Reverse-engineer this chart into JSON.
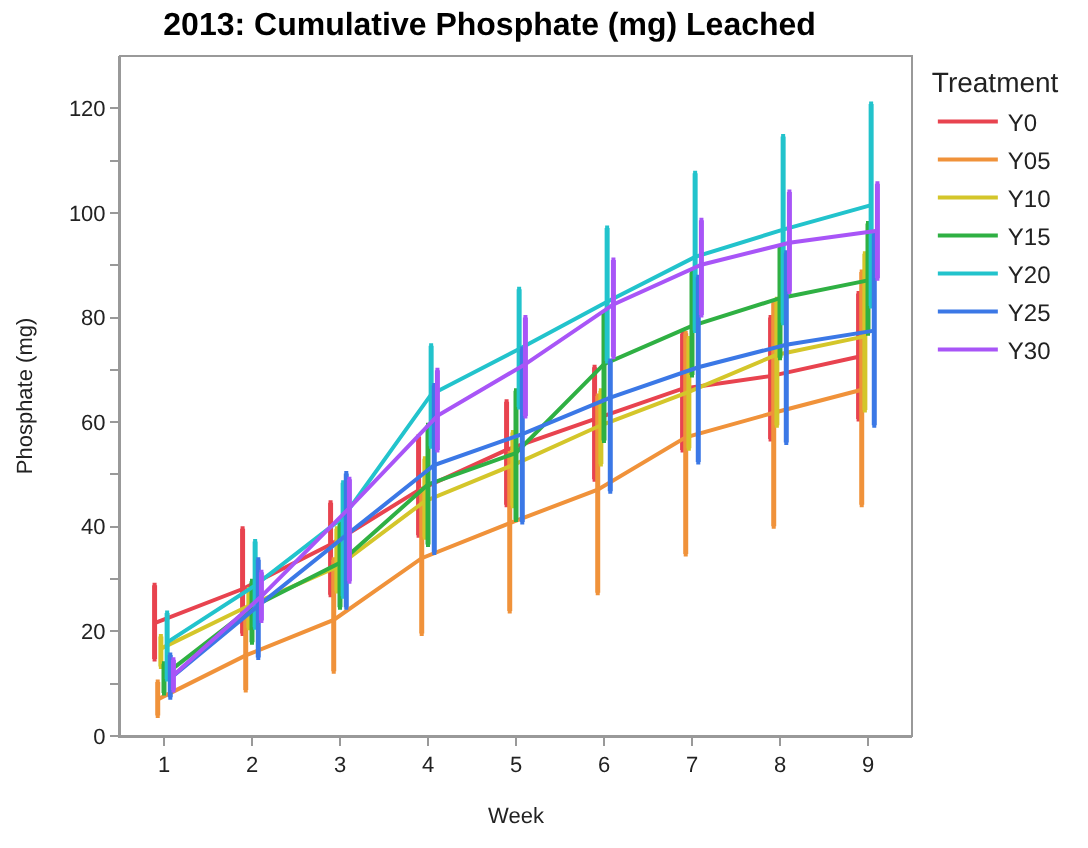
{
  "chart_data": {
    "type": "line",
    "title": "2013: Cumulative Phosphate (mg) Leached",
    "xlabel": "Week",
    "ylabel": "Phosphate (mg)",
    "legend_title": "Treatment",
    "legend": "right",
    "marker": "none",
    "line_style": "solid",
    "categories": [
      "1",
      "2",
      "3",
      "4",
      "5",
      "6",
      "7",
      "8",
      "9"
    ],
    "ylim": [
      0,
      130
    ],
    "yticks": [
      0,
      {
        "value": 10,
        "label": null
      },
      20,
      {
        "value": 30,
        "label": null
      },
      40,
      {
        "value": 50,
        "label": null
      },
      60,
      {
        "value": 70,
        "label": null
      },
      80,
      {
        "value": 90,
        "label": null
      },
      100,
      {
        "value": 110,
        "label": null
      },
      120
    ],
    "series": [
      {
        "name": "Y0",
        "color": "#e8434f",
        "values": [
          21.6,
          28.1,
          36.6,
          47,
          54.7,
          60.6,
          66.4,
          68.8,
          72.5
        ],
        "errors": [
          [
            14.7,
            28.8
          ],
          [
            19.6,
            39.6
          ],
          [
            27,
            44.6
          ],
          [
            38.4,
            57.2
          ],
          [
            44.2,
            63.9
          ],
          [
            49.1,
            70.5
          ],
          [
            54.7,
            76.9
          ],
          [
            56.8,
            80
          ],
          [
            60.6,
            84.6
          ]
        ]
      },
      {
        "name": "Y05",
        "color": "#f0923a",
        "values": [
          7,
          15.4,
          22.2,
          34,
          40.7,
          47.1,
          57.1,
          61.8,
          66.2
        ],
        "errors": [
          [
            3.9,
            10.3
          ],
          [
            8.8,
            23
          ],
          [
            12.4,
            33.7
          ],
          [
            19.6,
            47
          ],
          [
            23.9,
            54
          ],
          [
            27.4,
            65
          ],
          [
            34.8,
            77
          ],
          [
            40.1,
            82.8
          ],
          [
            44.2,
            88.7
          ]
        ]
      },
      {
        "name": "Y10",
        "color": "#d4c62a",
        "values": [
          16.7,
          24.9,
          32.3,
          44.9,
          51.8,
          59.4,
          65.8,
          72.9,
          76.4
        ],
        "errors": [
          [
            13.3,
            19
          ],
          [
            20.7,
            28
          ],
          [
            27.7,
            39.6
          ],
          [
            38,
            53
          ],
          [
            44,
            58
          ],
          [
            52,
            66
          ],
          [
            55,
            76
          ],
          [
            59.4,
            83.5
          ],
          [
            62.3,
            92.2
          ]
        ]
      },
      {
        "name": "Y15",
        "color": "#2fb043",
        "values": [
          11.6,
          24.6,
          33.1,
          48.1,
          54.1,
          71.1,
          78.4,
          83.7,
          87.1
        ],
        "errors": [
          [
            8.2,
            13.8
          ],
          [
            17.9,
            29.6
          ],
          [
            24.6,
            41.4
          ],
          [
            36.6,
            59.4
          ],
          [
            41.4,
            66
          ],
          [
            56.5,
            80.7
          ],
          [
            69,
            88.6
          ],
          [
            72.3,
            93.3
          ],
          [
            77,
            98
          ]
        ]
      },
      {
        "name": "Y20",
        "color": "#22c3cc",
        "values": [
          17.9,
          28.8,
          41.8,
          65.3,
          74,
          83,
          91.6,
          96.8,
          101.5
        ],
        "errors": [
          [
            10.9,
            23.5
          ],
          [
            20.8,
            37.2
          ],
          [
            26.7,
            48.4
          ],
          [
            55.4,
            74.6
          ],
          [
            62.9,
            85.4
          ],
          [
            71.7,
            97.1
          ],
          [
            77.5,
            107.6
          ],
          [
            79,
            114.6
          ],
          [
            82.2,
            120.8
          ]
        ]
      },
      {
        "name": "Y25",
        "color": "#3b78e6",
        "values": [
          11,
          24.9,
          38.4,
          51.8,
          57.7,
          64.7,
          70.5,
          74.8,
          77.5
        ],
        "errors": [
          [
            7.4,
            15.5
          ],
          [
            15,
            33.7
          ],
          [
            24.6,
            50.2
          ],
          [
            35.1,
            67
          ],
          [
            40.9,
            74
          ],
          [
            46.8,
            71.7
          ],
          [
            52.4,
            87.7
          ],
          [
            56.1,
            92.4
          ],
          [
            59.4,
            95.9
          ]
        ]
      },
      {
        "name": "Y30",
        "color": "#a855f7",
        "values": [
          11.6,
          26.7,
          43.6,
          61.2,
          71.1,
          82.5,
          90.1,
          94.3,
          96.6
        ],
        "errors": [
          [
            8.8,
            14.6
          ],
          [
            22.1,
            31.3
          ],
          [
            29.6,
            49.1
          ],
          [
            54.7,
            69.9
          ],
          [
            61.2,
            80
          ],
          [
            72.5,
            91
          ],
          [
            80.5,
            98.6
          ],
          [
            85,
            104
          ],
          [
            87.5,
            105.6
          ]
        ]
      }
    ]
  }
}
